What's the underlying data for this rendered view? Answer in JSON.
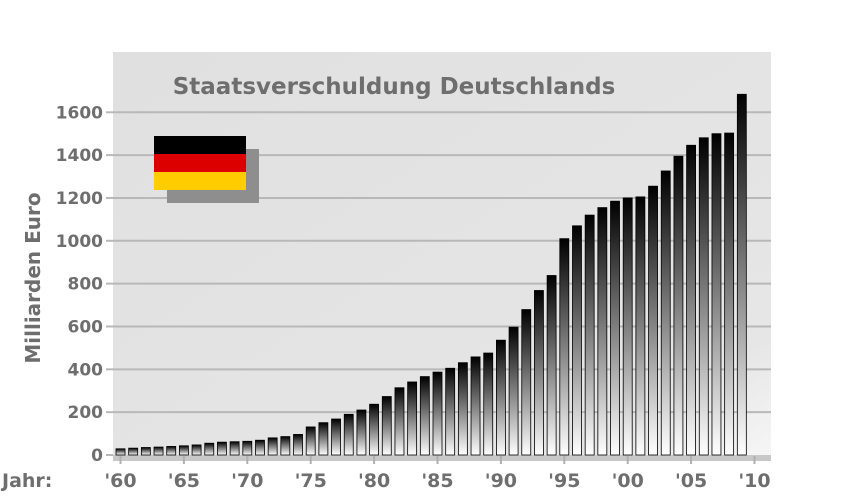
{
  "chart_data": {
    "type": "bar",
    "title": "Staatsverschuldung Deutschlands",
    "ylabel": "Milliarden Euro",
    "xlabel_prefix": "Jahr:",
    "ylim": [
      0,
      1700
    ],
    "yticks": [
      0,
      200,
      400,
      600,
      800,
      1000,
      1200,
      1400,
      1600
    ],
    "xtick_labels": [
      "'60",
      "'65",
      "'70",
      "'75",
      "'80",
      "'85",
      "'90",
      "'95",
      "'00",
      "'05",
      "'10"
    ],
    "xtick_years": [
      1960,
      1965,
      1970,
      1975,
      1980,
      1985,
      1990,
      1995,
      2000,
      2005,
      2010
    ],
    "grid": true,
    "colors": {
      "bar_top": "#000000",
      "bar_bottom": "#ffffff",
      "plot_bg": "#e6e6e6",
      "grid": "#b8b8b8",
      "text": "#6e6e6e"
    },
    "flag_colors": [
      "#000000",
      "#dd0000",
      "#ffcc00"
    ],
    "x": [
      1960,
      1961,
      1962,
      1963,
      1964,
      1965,
      1966,
      1967,
      1968,
      1969,
      1970,
      1971,
      1972,
      1973,
      1974,
      1975,
      1976,
      1977,
      1978,
      1979,
      1980,
      1981,
      1982,
      1983,
      1984,
      1985,
      1986,
      1987,
      1988,
      1989,
      1990,
      1991,
      1992,
      1993,
      1994,
      1995,
      1996,
      1997,
      1998,
      1999,
      2000,
      2001,
      2002,
      2003,
      2004,
      2005,
      2006,
      2007,
      2008,
      2009
    ],
    "values": [
      29,
      32,
      35,
      37,
      40,
      43,
      47,
      55,
      60,
      62,
      64,
      69,
      80,
      86,
      96,
      131,
      151,
      168,
      190,
      210,
      237,
      273,
      314,
      341,
      366,
      387,
      405,
      431,
      458,
      476,
      536,
      597,
      679,
      768,
      838,
      1010,
      1070,
      1120,
      1155,
      1185,
      1200,
      1205,
      1255,
      1326,
      1395,
      1446,
      1481,
      1500,
      1503,
      1684
    ]
  }
}
